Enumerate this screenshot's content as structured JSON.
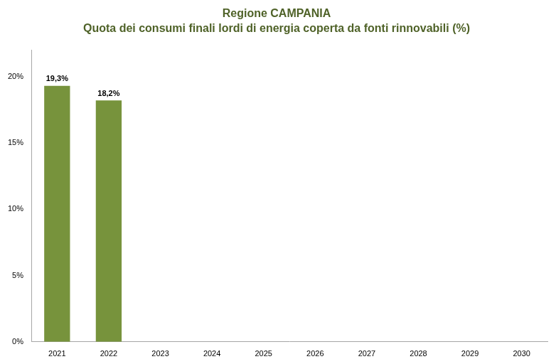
{
  "chart_data": {
    "type": "bar",
    "title": "Regione CAMPANIA",
    "subtitle": "Quota dei consumi finali lordi di energia coperta da fonti rinnovabili (%)",
    "categories": [
      "2021",
      "2022",
      "2023",
      "2024",
      "2025",
      "2026",
      "2027",
      "2028",
      "2029",
      "2030"
    ],
    "values": [
      19.3,
      18.2,
      null,
      null,
      null,
      null,
      null,
      null,
      null,
      null
    ],
    "value_labels": [
      "19,3%",
      "18,2%",
      null,
      null,
      null,
      null,
      null,
      null,
      null,
      null
    ],
    "color": "#77933c",
    "ylim": [
      0,
      22
    ],
    "yticks": [
      {
        "value": 0,
        "label": "0%"
      },
      {
        "value": 5,
        "label": "5%"
      },
      {
        "value": 10,
        "label": "10%"
      },
      {
        "value": 15,
        "label": "15%"
      },
      {
        "value": 20,
        "label": "20%"
      }
    ],
    "grid": false,
    "data_labels": true
  }
}
